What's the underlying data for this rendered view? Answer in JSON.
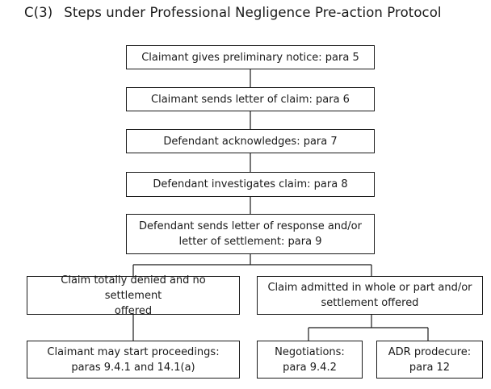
{
  "title": {
    "number": "C(3)",
    "text": "Steps under Professional Negligence Pre-action Protocol"
  },
  "steps": {
    "step1": "Claimant gives preliminary notice: para 5",
    "step2": "Claimant sends letter of claim: para 6",
    "step3": "Defendant acknowledges: para 7",
    "step4": "Defendant investigates claim: para 8",
    "step5": "Defendant sends letter of response and/or\nletter of settlement: para 9"
  },
  "branches": {
    "denied": "Claim totally denied and no settlement\noffered",
    "admitted": "Claim admitted in whole or part and/or\nsettlement offered"
  },
  "outcomes": {
    "proceedings": "Claimant may start proceedings:\nparas 9.4.1 and 14.1(a)",
    "negotiations": "Negotiations:\npara 9.4.2",
    "adr": "ADR prodecure:\npara 12"
  }
}
